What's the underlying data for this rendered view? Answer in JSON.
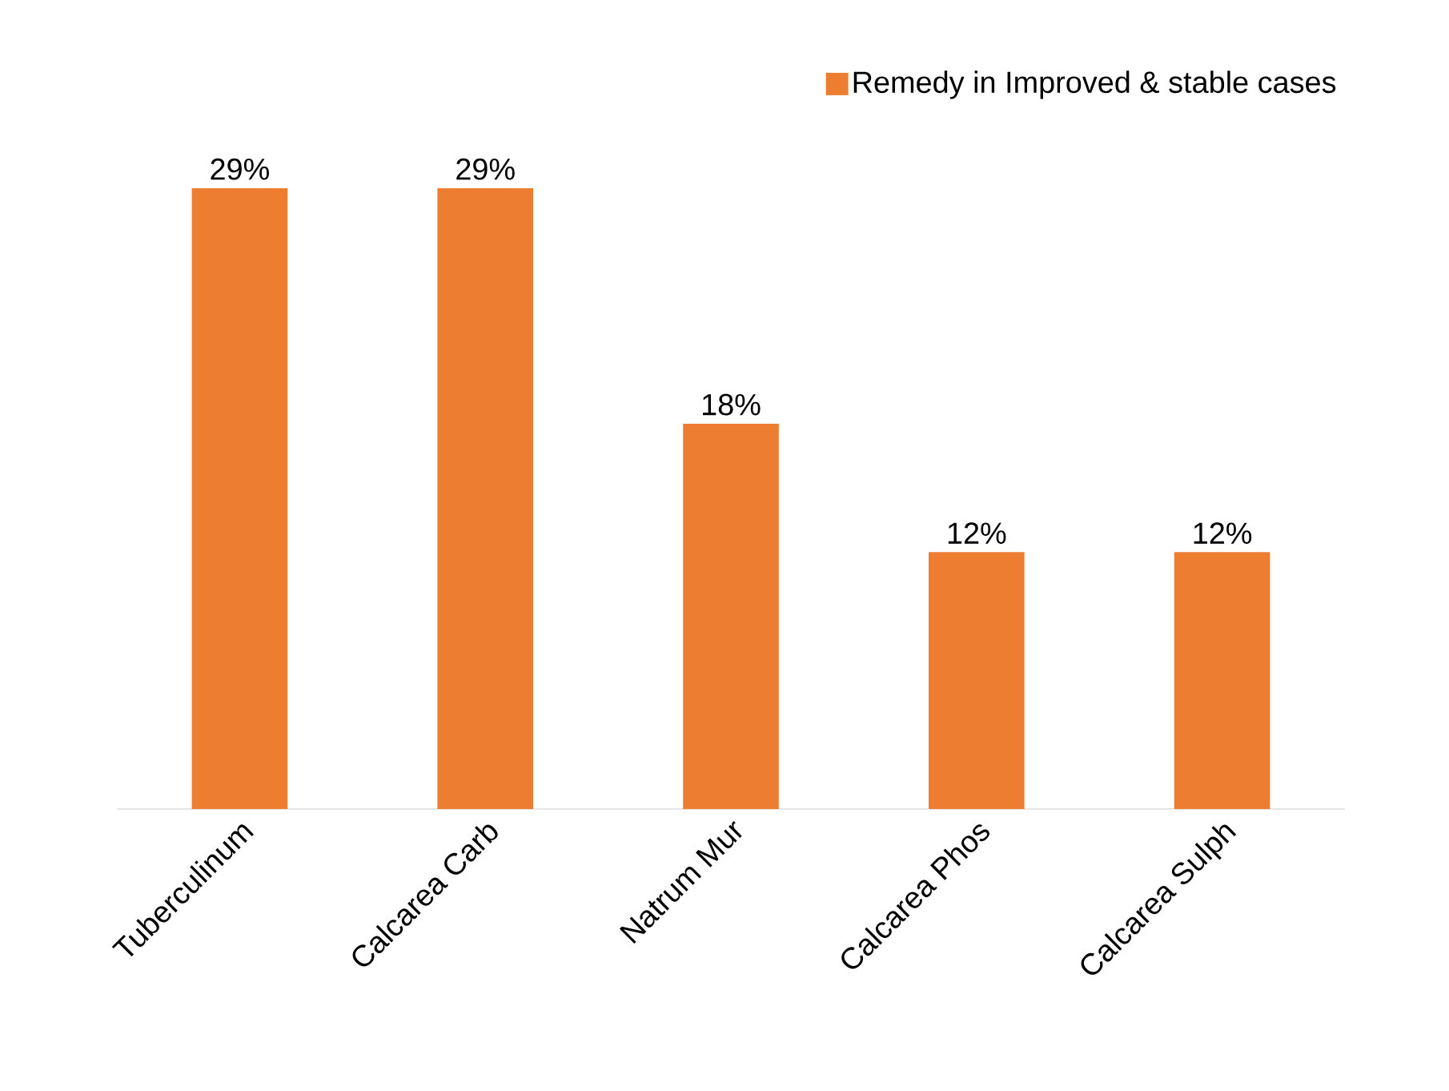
{
  "chart_data": {
    "type": "bar",
    "categories": [
      "Tuberculinum",
      "Calcarea Carb",
      "Natrum Mur",
      "Calcarea Phos",
      "Calcarea Sulph"
    ],
    "series": [
      {
        "name": "Remedy in Improved & stable cases",
        "color": "#ed7d31",
        "values": [
          29,
          29,
          18,
          12,
          12
        ],
        "value_labels": [
          "29%",
          "29%",
          "18%",
          "12%",
          "12%"
        ]
      }
    ],
    "legend": "top right"
  }
}
